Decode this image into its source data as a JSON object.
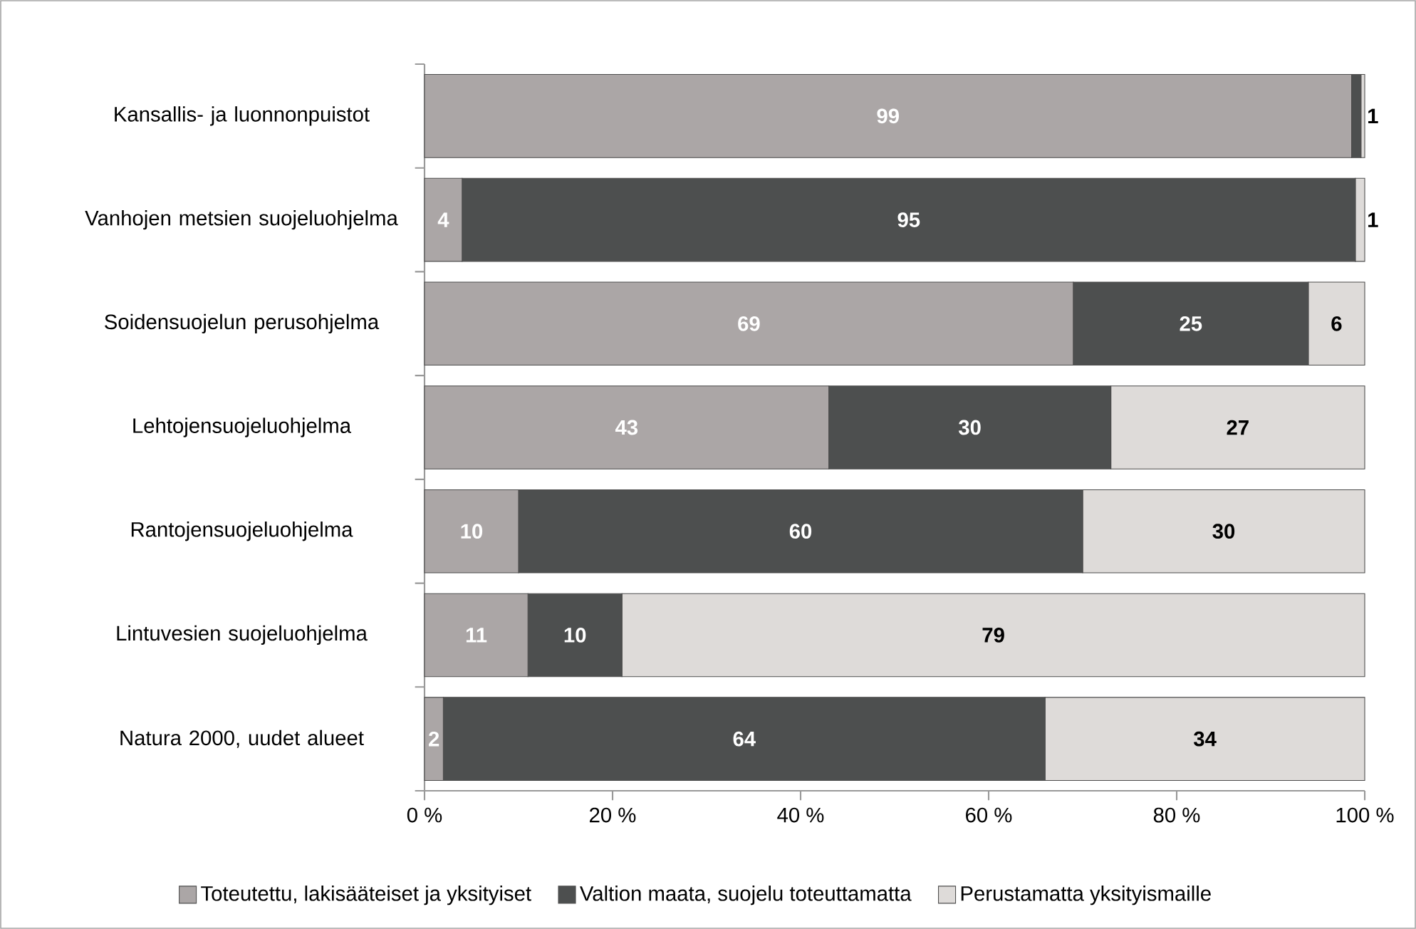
{
  "chart_data": {
    "type": "bar",
    "orientation": "horizontal",
    "stacked": true,
    "categories": [
      "Kansallis- ja luonnonpuistot",
      "Vanhojen metsien suojeluohjelma",
      "Soidensuojelun perusohjelma",
      "Lehtojensuojeluohjelma",
      "Rantojensuojeluohjelma",
      "Lintuvesien suojeluohjelma",
      "Natura 2000, uudet alueet"
    ],
    "series": [
      {
        "name": "Toteutettu, lakisääteiset ja yksityiset",
        "color": "#aba6a6",
        "values": [
          98.6,
          4,
          69,
          43,
          10,
          11,
          2
        ],
        "value_labels": [
          "99",
          "4",
          "69",
          "43",
          "10",
          "11",
          "2"
        ]
      },
      {
        "name": "Valtion maata, suojelu toteuttamatta",
        "color": "#4d4f4f",
        "values": [
          1,
          95,
          25,
          30,
          60,
          10,
          64
        ],
        "value_labels": [
          "1",
          "95",
          "25",
          "30",
          "60",
          "10",
          "64"
        ]
      },
      {
        "name": "Perustamatta yksityismaille",
        "color": "#dedbd9",
        "values": [
          0.4,
          1,
          6,
          27,
          30,
          79,
          34
        ],
        "value_labels": [
          null,
          "1",
          "6",
          "27",
          "30",
          "79",
          "34"
        ]
      }
    ],
    "xlim": [
      0,
      100
    ],
    "xticks": [
      {
        "value": 0,
        "label": "0 %"
      },
      {
        "value": 20,
        "label": "20 %"
      },
      {
        "value": 40,
        "label": "40 %"
      },
      {
        "value": 60,
        "label": "60 %"
      },
      {
        "value": 80,
        "label": "80 %"
      },
      {
        "value": 100,
        "label": "100 %"
      }
    ],
    "grid": false,
    "legend": "bottom"
  }
}
